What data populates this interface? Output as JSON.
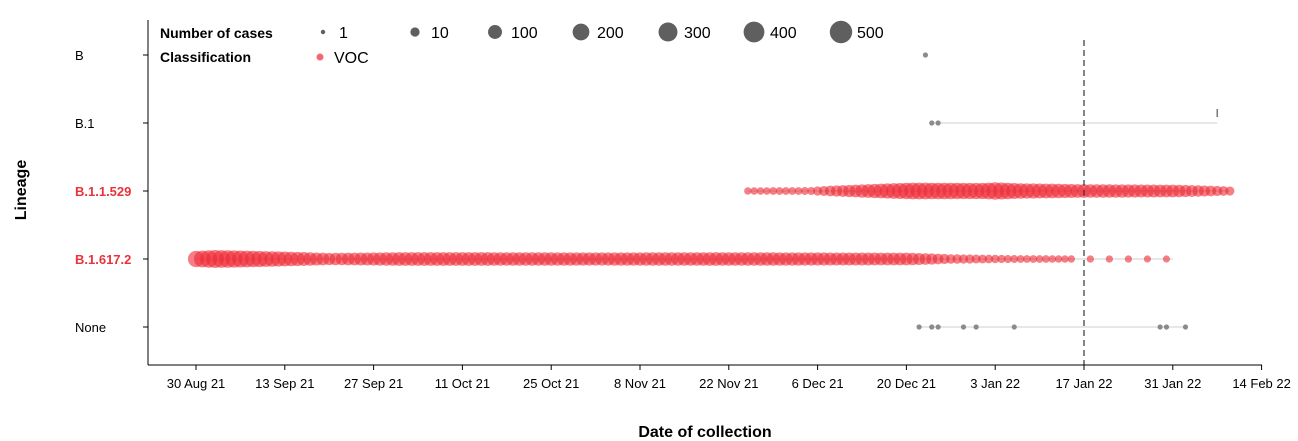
{
  "chart_data": {
    "type": "scatter",
    "xlabel": "Date of collection",
    "ylabel": "Lineage",
    "x_ticks": [
      "30 Aug 21",
      "13 Sep 21",
      "27 Sep 21",
      "11 Oct 21",
      "25 Oct 21",
      "8 Nov 21",
      "22 Nov 21",
      "6 Dec 21",
      "20 Dec 21",
      "3 Jan 22",
      "17 Jan 22",
      "31 Jan 22",
      "14 Feb 22"
    ],
    "categories": [
      "B",
      "B.1",
      "B.1.1.529",
      "B.1.617.2",
      "None"
    ],
    "voc_lineages": [
      "B.1.1.529",
      "B.1.617.2"
    ],
    "reference_line": "17 Jan 22",
    "legend": {
      "size_title": "Number of cases",
      "size_levels": [
        "1",
        "10",
        "100",
        "200",
        "300",
        "400",
        "500"
      ],
      "color_title": "Classification",
      "color_entry": "VOC"
    },
    "colors": {
      "voc": "#ee2a35",
      "other": "#7f7f7f"
    },
    "series": [
      {
        "lineage": "B",
        "class": "other",
        "points": [
          {
            "date": "2021-12-23",
            "cases": 1
          }
        ]
      },
      {
        "lineage": "B.1",
        "class": "other",
        "points": [
          {
            "date": "2021-12-24",
            "cases": 1
          },
          {
            "date": "2021-12-25",
            "cases": 1
          },
          {
            "date": "2022-02-07",
            "cases": 1
          }
        ]
      },
      {
        "lineage": "B.1.1.529",
        "class": "voc",
        "start": "2021-11-25",
        "end": "2022-02-09",
        "profile": [
          [
            "2021-11-25",
            3
          ],
          [
            "2021-12-05",
            6
          ],
          [
            "2021-12-12",
            70
          ],
          [
            "2021-12-21",
            180
          ],
          [
            "2021-12-26",
            170
          ],
          [
            "2022-01-01",
            160
          ],
          [
            "2022-01-03",
            200
          ],
          [
            "2022-01-07",
            140
          ],
          [
            "2022-01-17",
            90
          ],
          [
            "2022-01-31",
            70
          ],
          [
            "2022-02-05",
            40
          ],
          [
            "2022-02-09",
            15
          ]
        ]
      },
      {
        "lineage": "B.1.617.2",
        "class": "voc",
        "start": "2021-08-30",
        "end": "2022-01-31",
        "profile": [
          [
            "2021-08-30",
            160
          ],
          [
            "2021-09-02",
            220
          ],
          [
            "2021-09-10",
            150
          ],
          [
            "2021-09-20",
            60
          ],
          [
            "2021-10-01",
            90
          ],
          [
            "2021-10-15",
            90
          ],
          [
            "2021-11-01",
            80
          ],
          [
            "2021-11-20",
            90
          ],
          [
            "2021-12-05",
            80
          ],
          [
            "2021-12-20",
            70
          ],
          [
            "2021-12-27",
            20
          ],
          [
            "2022-01-05",
            6
          ],
          [
            "2022-01-15",
            3
          ],
          [
            "2022-01-31",
            2
          ]
        ]
      },
      {
        "lineage": "None",
        "class": "other",
        "points": [
          {
            "date": "2021-12-22",
            "cases": 1
          },
          {
            "date": "2021-12-24",
            "cases": 1
          },
          {
            "date": "2021-12-25",
            "cases": 1
          },
          {
            "date": "2021-12-29",
            "cases": 1
          },
          {
            "date": "2021-12-31",
            "cases": 1
          },
          {
            "date": "2022-01-06",
            "cases": 1
          },
          {
            "date": "2022-01-29",
            "cases": 1
          },
          {
            "date": "2022-01-30",
            "cases": 1
          },
          {
            "date": "2022-02-02",
            "cases": 1
          }
        ]
      }
    ]
  }
}
